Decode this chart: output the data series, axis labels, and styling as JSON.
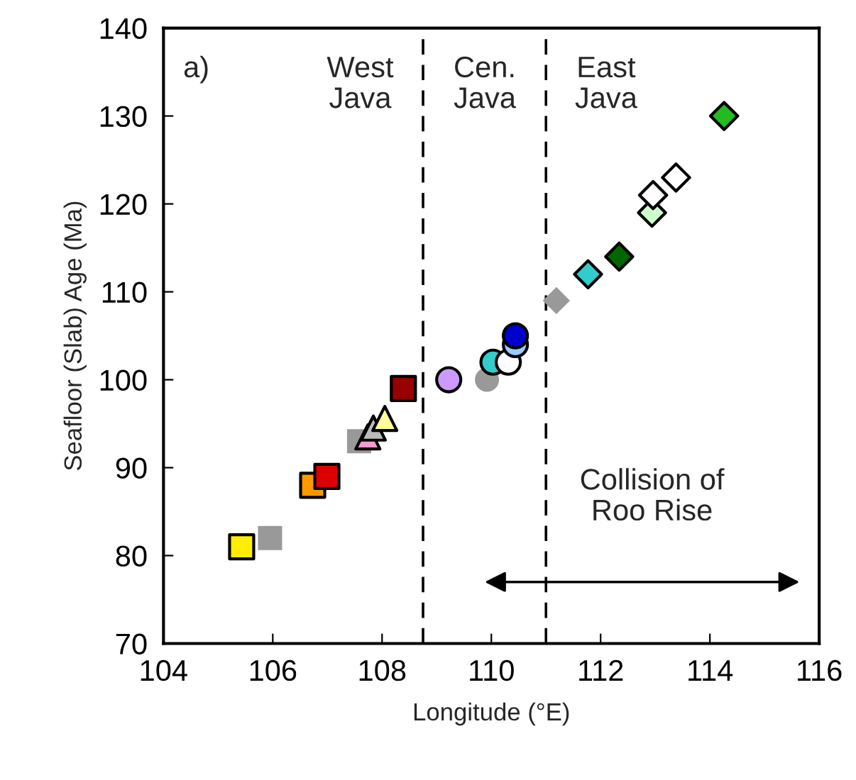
{
  "chart_data": {
    "type": "scatter",
    "xlabel": "Longitude (°E)",
    "ylabel": "Seafloor (Slab) Age (Ma)",
    "xlim": [
      104,
      116
    ],
    "xticks": [
      104,
      106,
      108,
      110,
      112,
      114,
      116
    ],
    "ylim": [
      70,
      140
    ],
    "yticks": [
      70,
      80,
      90,
      100,
      110,
      120,
      130,
      140
    ],
    "grid": false,
    "legend": false,
    "series": [
      {
        "marker": "square",
        "x": [
          105.43,
          105.95,
          106.73,
          106.99,
          107.58,
          108.39
        ],
        "values": [
          81,
          82,
          88,
          89,
          93,
          99
        ],
        "colors": [
          "#ffee00",
          "#999999",
          "#ff9900",
          "#dd0000",
          "#999999",
          "#990000"
        ]
      },
      {
        "marker": "triangle",
        "x": [
          107.74,
          107.84,
          108.05
        ],
        "values": [
          93.5,
          94.5,
          95.6
        ],
        "colors": [
          "#ff99cc",
          "#bbbbbb",
          "#ffff99"
        ]
      },
      {
        "marker": "circle",
        "x": [
          109.22,
          109.92,
          110.03,
          110.31,
          110.44,
          110.44
        ],
        "values": [
          100,
          100,
          102,
          102,
          104,
          105
        ],
        "colors": [
          "#cc99ff",
          "#999999",
          "#33cccc",
          "#ffffff",
          "#99ccff",
          "#0000cc"
        ]
      },
      {
        "marker": "diamond",
        "x": [
          111.19,
          111.77,
          112.34,
          112.94,
          112.96,
          113.38,
          114.26
        ],
        "values": [
          109,
          112,
          114,
          119,
          121,
          123,
          130
        ],
        "colors": [
          "#999999",
          "#33cccc",
          "#006600",
          "#ccffcc",
          "#ffffff",
          "#ffffff",
          "#22bb22"
        ]
      }
    ],
    "ref_lines": [
      {
        "axis": "x",
        "value": 108.75,
        "line_style": "dashed"
      },
      {
        "axis": "x",
        "value": 111.0,
        "line_style": "dashed"
      }
    ],
    "annotations": [
      "a)",
      "West\nJava",
      "Cen.\nJava",
      "East\nJava",
      "Collision of\nRoo Rise"
    ]
  }
}
